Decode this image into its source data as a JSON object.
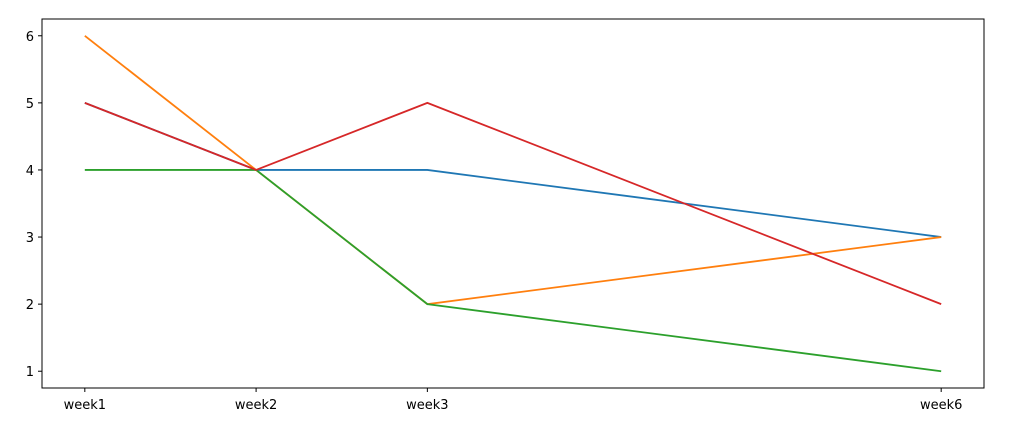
{
  "chart_data": {
    "type": "line",
    "x": [
      1,
      2,
      3,
      6
    ],
    "xlim": [
      0.75,
      6.25
    ],
    "xticks": [
      {
        "value": 1,
        "label": "week1"
      },
      {
        "value": 2,
        "label": "week2"
      },
      {
        "value": 3,
        "label": "week3"
      },
      {
        "value": 6,
        "label": "week6"
      }
    ],
    "ylim": [
      0.75,
      6.25
    ],
    "yticks": [
      1,
      2,
      3,
      4,
      5,
      6
    ],
    "grid": false,
    "series": [
      {
        "color": "#1f77b4",
        "values": [
          5,
          4,
          4,
          3
        ]
      },
      {
        "color": "#ff7f0e",
        "values": [
          6,
          4,
          2,
          3
        ]
      },
      {
        "color": "#2ca02c",
        "values": [
          4,
          4,
          2,
          1
        ]
      },
      {
        "color": "#d62728",
        "values": [
          5,
          4,
          5,
          2
        ]
      }
    ]
  }
}
